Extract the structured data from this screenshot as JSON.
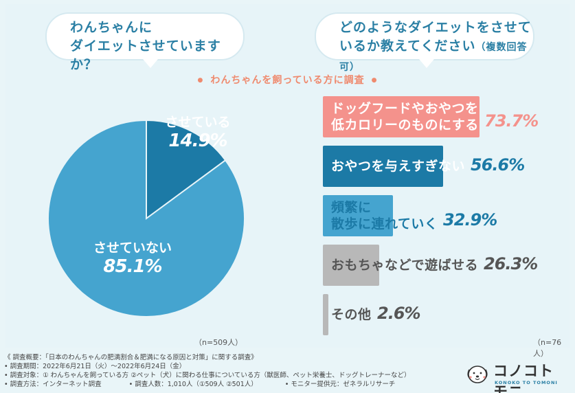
{
  "questions": {
    "left_line1": "わんちゃんに",
    "left_line2": "ダイエットさせていますか？",
    "right_line1": "どのようなダイエットをさせて",
    "right_line2": "いるか教えてください",
    "right_note": "（複数回答可）"
  },
  "subtitle": "わんちゃんを飼っている方に調査",
  "chart_data": [
    {
      "type": "pie",
      "slices": [
        {
          "label": "させている",
          "value": 14.9,
          "display": "14.9%",
          "color": "#1c7aa6"
        },
        {
          "label": "させていない",
          "value": 85.1,
          "display": "85.1%",
          "color": "#45a4cf"
        }
      ],
      "n_label": "（n=509人）"
    },
    {
      "type": "bar",
      "orientation": "horizontal",
      "xlim": [
        0,
        100
      ],
      "categories": [
        {
          "line1": "ドッグフードやおやつを",
          "line2": "低カロリーのものにする",
          "value": 73.7,
          "display": "73.7%",
          "color": "#f4928c",
          "text_color": "#ffffff",
          "pct_color": "#f4928c"
        },
        {
          "line1": "おやつを与えすぎない",
          "line2": "",
          "value": 56.6,
          "display": "56.6%",
          "color": "#1c7aa6",
          "text_color": "#ffffff",
          "pct_color": "#1c7aa6"
        },
        {
          "line1": "頻繁に",
          "line2": "散歩に連れていく",
          "value": 32.9,
          "display": "32.9%",
          "color": "#45a4cf",
          "text_color": "#1c7aa6",
          "pct_color": "#1c7aa6"
        },
        {
          "line1": "おもちゃなどで遊ばせる",
          "line2": "",
          "value": 26.3,
          "display": "26.3%",
          "color": "#b8b8b8",
          "text_color": "#555555",
          "pct_color": "#555555"
        },
        {
          "line1": "その他",
          "line2": "",
          "value": 2.6,
          "display": "2.6%",
          "color": "#b8b8b8",
          "text_color": "#555555",
          "pct_color": "#555555"
        }
      ],
      "n_label": "（n=76人）"
    }
  ],
  "footer": {
    "line1": "《 調査概要：「日本のわんちゃんの肥満割合＆肥満になる原因と対策」に関する調査》",
    "line2": "• 調査期間：2022年6月21日（火）～2022年6月24日（金）",
    "line3": "• 調査対象：① わんちゃんを飼っている方 ②ペット（犬）に関わる仕事についている方（獣医師、ペット栄養士、ドッグトレーナーなど）",
    "line4a": "• 調査方法：インターネット調査",
    "line4b": "• 調査人数：1,010人（①509人 ②501人）",
    "line4c": "• モニター提供元：ゼネラルリサーチ"
  },
  "logo": {
    "word": "コノコトモニ",
    "sub": "KONOKO TO TOMONI"
  }
}
